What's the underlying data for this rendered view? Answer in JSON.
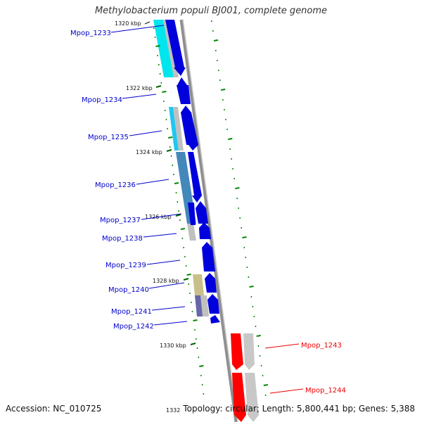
{
  "title": "Methylobacterium populi BJ001, complete genome",
  "accession": "Accession: NC_010725",
  "topology": "Topology: circular; Length: 5,800,441 bp; Genes: 5,388",
  "colors": {
    "forward_gene": "#0000dd",
    "reverse_gene_highlight": "#ff0000",
    "label_blue": "#0000cc",
    "label_red": "#ee0000",
    "backbone": "#888888",
    "gc_marks": "#008800"
  },
  "ticks": [
    {
      "label": "1320 kbp"
    },
    {
      "label": "1322 kbp"
    },
    {
      "label": "1324 kbp"
    },
    {
      "label": "1326 kbp"
    },
    {
      "label": "1328 kbp"
    },
    {
      "label": "1330 kbp"
    },
    {
      "label": "1332"
    }
  ],
  "genes": [
    {
      "name": "Mpop_1233",
      "strand": "+"
    },
    {
      "name": "Mpop_1234",
      "strand": "+"
    },
    {
      "name": "Mpop_1235",
      "strand": "+"
    },
    {
      "name": "Mpop_1236",
      "strand": "+"
    },
    {
      "name": "Mpop_1237",
      "strand": "+"
    },
    {
      "name": "Mpop_1238",
      "strand": "+"
    },
    {
      "name": "Mpop_1239",
      "strand": "+"
    },
    {
      "name": "Mpop_1240",
      "strand": "+"
    },
    {
      "name": "Mpop_1241",
      "strand": "+"
    },
    {
      "name": "Mpop_1242",
      "strand": "+"
    },
    {
      "name": "Mpop_1243",
      "strand": "-"
    },
    {
      "name": "Mpop_1244",
      "strand": "-"
    }
  ]
}
